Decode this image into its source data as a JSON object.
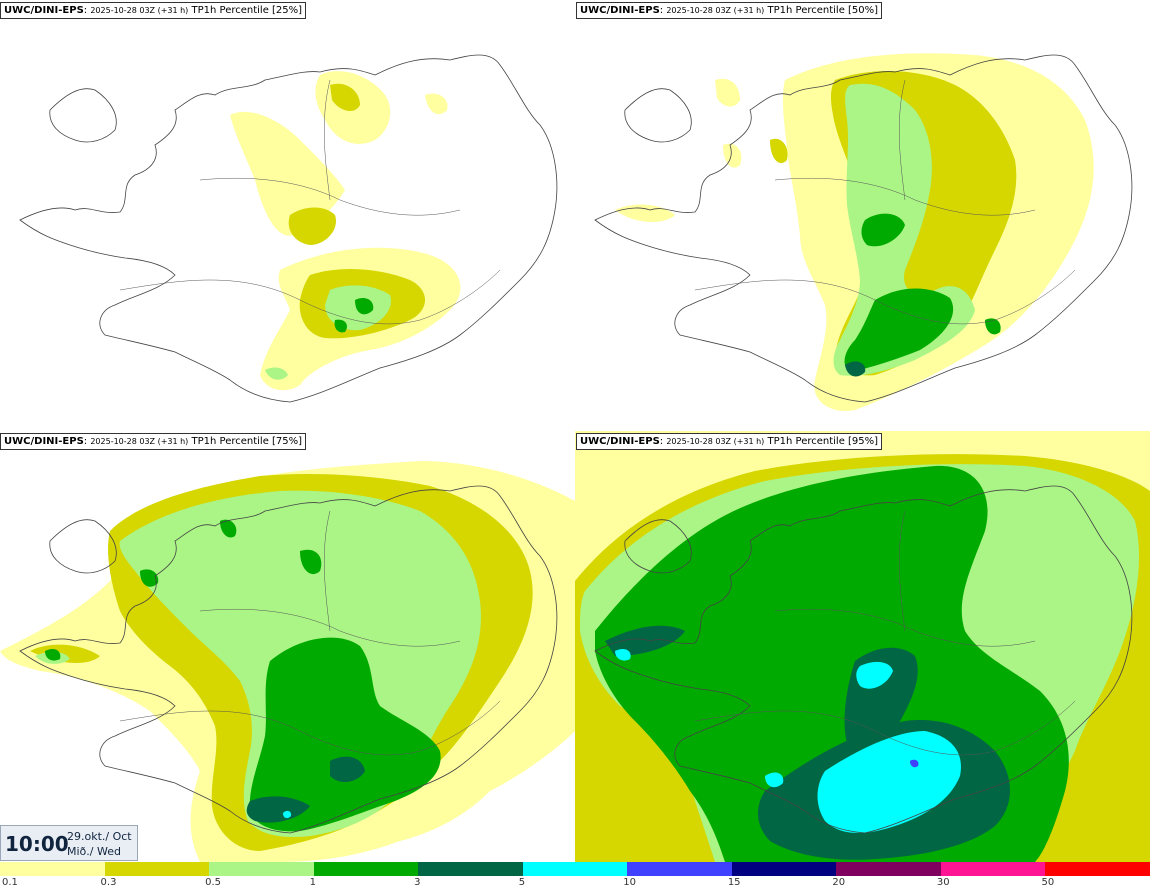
{
  "panels": [
    {
      "model": "UWC/DINI-EPS",
      "run": "2025-10-28 03Z (+31 h)",
      "product": "TP1h Percentile [25%]"
    },
    {
      "model": "UWC/DINI-EPS",
      "run": "2025-10-28 03Z (+31 h)",
      "product": "TP1h Percentile [50%]"
    },
    {
      "model": "UWC/DINI-EPS",
      "run": "2025-10-28 03Z (+31 h)",
      "product": "TP1h Percentile [75%]"
    },
    {
      "model": "UWC/DINI-EPS",
      "run": "2025-10-28 03Z (+31 h)",
      "product": "TP1h Percentile [95%]"
    }
  ],
  "valid_time": {
    "time": "10:00",
    "date": "29.okt./ Oct",
    "weekday": "Mið./ Wed"
  },
  "colorbar": {
    "ticks": [
      "0.1",
      "0.3",
      "0.5",
      "1",
      "3",
      "5",
      "10",
      "15",
      "20",
      "30",
      "50"
    ],
    "colors": [
      "#ffffa0",
      "#d6d600",
      "#aaf586",
      "#00aa00",
      "#006644",
      "#00ffff",
      "#4040ff",
      "#000080",
      "#800060",
      "#ff1493",
      "#ff0000"
    ]
  }
}
